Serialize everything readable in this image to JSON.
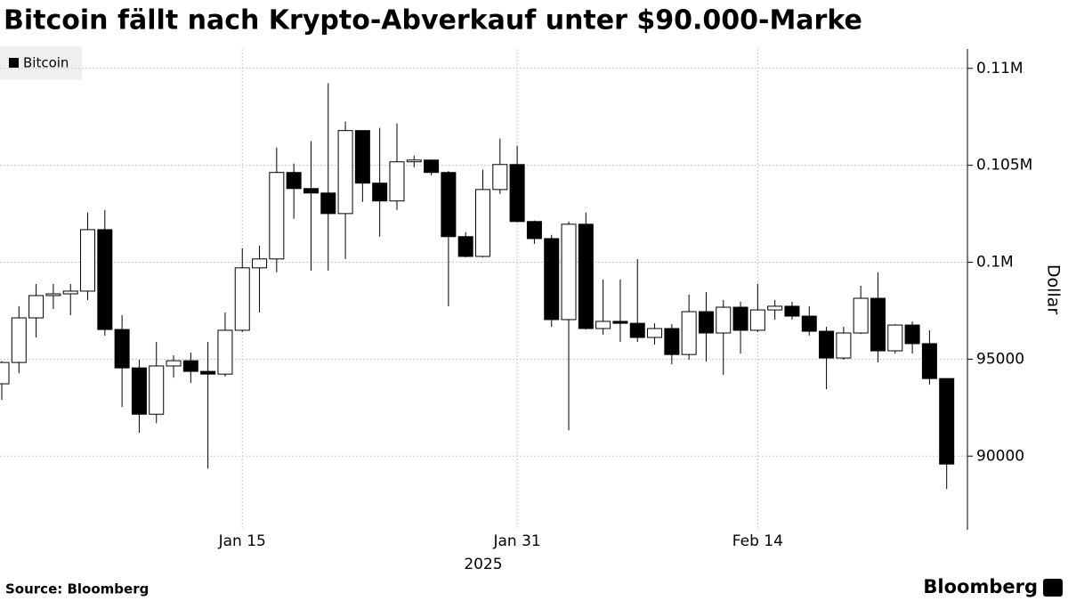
{
  "chart_data": {
    "type": "candlestick",
    "title": "Bitcoin fällt nach Krypto-Abverkauf unter $90.000-Marke",
    "source": "Source: Bloomberg",
    "brand": "Bloomberg",
    "ylabel": "Dollar",
    "year_label": "2025",
    "up_color": "#ffffff",
    "down_color": "#000000",
    "grid": true,
    "legend": "top-left",
    "x": [
      "2025-01-01",
      "2025-01-02",
      "2025-01-03",
      "2025-01-04",
      "2025-01-05",
      "2025-01-06",
      "2025-01-07",
      "2025-01-08",
      "2025-01-09",
      "2025-01-10",
      "2025-01-11",
      "2025-01-12",
      "2025-01-13",
      "2025-01-14",
      "2025-01-15",
      "2025-01-16",
      "2025-01-17",
      "2025-01-18",
      "2025-01-19",
      "2025-01-20",
      "2025-01-21",
      "2025-01-22",
      "2025-01-23",
      "2025-01-24",
      "2025-01-25",
      "2025-01-26",
      "2025-01-27",
      "2025-01-28",
      "2025-01-29",
      "2025-01-30",
      "2025-01-31",
      "2025-02-01",
      "2025-02-02",
      "2025-02-03",
      "2025-02-04",
      "2025-02-05",
      "2025-02-06",
      "2025-02-07",
      "2025-02-08",
      "2025-02-09",
      "2025-02-10",
      "2025-02-11",
      "2025-02-12",
      "2025-02-13",
      "2025-02-14",
      "2025-02-15",
      "2025-02-16",
      "2025-02-17",
      "2025-02-18",
      "2025-02-19",
      "2025-02-20",
      "2025-02-21",
      "2025-02-22",
      "2025-02-23",
      "2025-02-24",
      "2025-02-25"
    ],
    "series": [
      {
        "name": "Bitcoin",
        "color": "#000000",
        "open": [
          93730,
          94830,
          97130,
          98280,
          98370,
          98510,
          101680,
          96530,
          94550,
          92160,
          94650,
          94920,
          94370,
          94230,
          96490,
          99710,
          100170,
          104630,
          103800,
          103570,
          102510,
          106790,
          104080,
          103160,
          105180,
          105270,
          104630,
          101320,
          100300,
          103750,
          105040,
          102100,
          101220,
          97040,
          101960,
          96580,
          96950,
          96850,
          96120,
          96580,
          95240,
          97450,
          96350,
          97680,
          96490,
          97540,
          97730,
          97220,
          96440,
          95060,
          96350,
          98140,
          95430,
          96760,
          95800,
          94000
        ],
        "high": [
          94900,
          97730,
          98880,
          98880,
          98880,
          102560,
          102700,
          97270,
          94970,
          95890,
          95200,
          95340,
          95890,
          97410,
          100720,
          100860,
          105920,
          105090,
          106240,
          109230,
          107250,
          106790,
          106930,
          107160,
          105500,
          105300,
          104700,
          101550,
          104770,
          106380,
          106010,
          102150,
          101410,
          102100,
          102560,
          99110,
          99110,
          100170,
          96850,
          96810,
          98330,
          98460,
          98050,
          97960,
          98880,
          98050,
          97960,
          97730,
          96670,
          96670,
          98790,
          99480,
          96800,
          96950,
          96490,
          94000
        ],
        "low": [
          92900,
          94280,
          96120,
          97590,
          97270,
          98050,
          96210,
          92530,
          91200,
          91700,
          94050,
          93770,
          89360,
          94100,
          96400,
          97410,
          99480,
          102240,
          99570,
          99570,
          100170,
          103110,
          101320,
          102700,
          104900,
          104490,
          97730,
          100250,
          100250,
          103520,
          102050,
          100950,
          96670,
          91330,
          96530,
          96260,
          95890,
          95890,
          95750,
          94740,
          94970,
          94880,
          94190,
          95290,
          96400,
          97040,
          97040,
          96210,
          93450,
          94970,
          96300,
          94830,
          95290,
          95290,
          93680,
          88300
        ],
        "close": [
          94830,
          97130,
          98280,
          98370,
          98510,
          101680,
          96530,
          94550,
          92160,
          94650,
          94920,
          94370,
          94230,
          96490,
          99710,
          100170,
          104630,
          103800,
          103570,
          102510,
          106790,
          104080,
          103160,
          105180,
          105270,
          104630,
          101320,
          100300,
          103750,
          105040,
          102100,
          101220,
          97040,
          101960,
          96580,
          96950,
          96850,
          96120,
          96580,
          95240,
          97450,
          96350,
          97680,
          96490,
          97540,
          97730,
          97220,
          96440,
          95060,
          96350,
          98140,
          95430,
          96760,
          95800,
          94000,
          89590
        ]
      }
    ],
    "xlim": [
      "2025-01-01",
      "2025-02-26"
    ],
    "xticks": [
      {
        "value": "2025-01-15",
        "label": "Jan 15"
      },
      {
        "value": "2025-01-31",
        "label": "Jan 31"
      },
      {
        "value": "2025-02-14",
        "label": "Feb 14"
      }
    ],
    "ylim": [
      86200,
      111000
    ],
    "yticks": [
      90000,
      95000,
      {
        "value": 100000,
        "label": "0.1M"
      },
      {
        "value": 105000,
        "label": "0.105M"
      },
      {
        "value": 110000,
        "label": "0.11M"
      }
    ]
  }
}
